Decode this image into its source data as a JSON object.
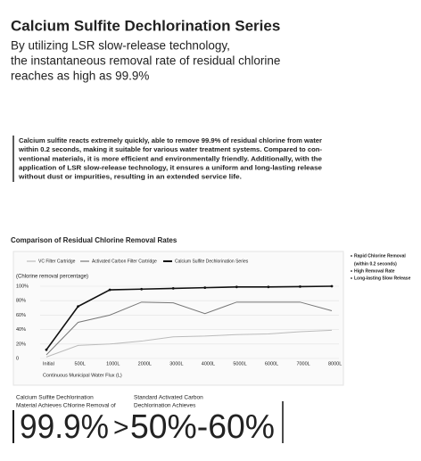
{
  "header": {
    "title": "Calcium Sulfite Dechlorination Series",
    "subtitle_lines": [
      "By utilizing LSR slow-release technology,",
      "the instantaneous removal rate of residual chlorine",
      "reaches as high as 99.9%"
    ]
  },
  "intro": {
    "lines": [
      "Calcium sulfite reacts extremely quickly, able to remove 99.9% of residual chlorine from water",
      "within 0.2 seconds, making it suitable for various water treatment systems. Compared to con-",
      "ventional materials, it is more efficient and environmentally friendly. Additionally, with the",
      "application of LSR slow-release technology, it ensures a uniform and long-lasting release",
      "without dust or impurities, resulting in an extended service life."
    ]
  },
  "chart_data": {
    "type": "line",
    "title": "Comparison of Residual Chlorine Removal Rates",
    "y_label": "(Chlorine removal percentage)",
    "x_label": "Continuous Municipal Water Flux (L)",
    "categories": [
      "Initial",
      "500L",
      "1000L",
      "2000L",
      "3000L",
      "4000L",
      "5000L",
      "6000L",
      "7000L",
      "8000L"
    ],
    "series": [
      {
        "name": "VC Filter Cartridge",
        "color": "#bbbbbb",
        "values": [
          2,
          18,
          20,
          24,
          30,
          31,
          33,
          34,
          37,
          39
        ]
      },
      {
        "name": "Activated Carbon Filter Cartridge",
        "color": "#777777",
        "values": [
          5,
          50,
          60,
          78,
          77,
          62,
          78,
          78,
          78,
          66
        ]
      },
      {
        "name": "Calcium Sulfite Dechlorination Series",
        "color": "#111111",
        "values": [
          12,
          72,
          95,
          96,
          97,
          98,
          99,
          99,
          99.5,
          100
        ]
      }
    ],
    "ylim": [
      0,
      100
    ],
    "yticks": [
      0,
      {
        "value": 20,
        "label": "20%"
      },
      {
        "value": 40,
        "label": "40%"
      },
      {
        "value": 60,
        "label": "60%"
      },
      {
        "value": 80,
        "label": "80%"
      },
      {
        "value": 100,
        "label": "100%"
      }
    ],
    "grid": true,
    "annotations": [
      "Rapid Chlorine Removal",
      "(within 0.2 seconds)",
      "High Removal Rate",
      "Long-lasting Slow Release"
    ]
  },
  "comparison": {
    "left_lines": [
      "Calcium Sulfite Dechlorination",
      "Material Achieves Chlorine Removal of"
    ],
    "right_lines": [
      "Standard Activated Carbon",
      "Dechlorination Achieves"
    ],
    "left_value": "99.9%",
    "operator": ">",
    "right_value": "50%-60%"
  }
}
